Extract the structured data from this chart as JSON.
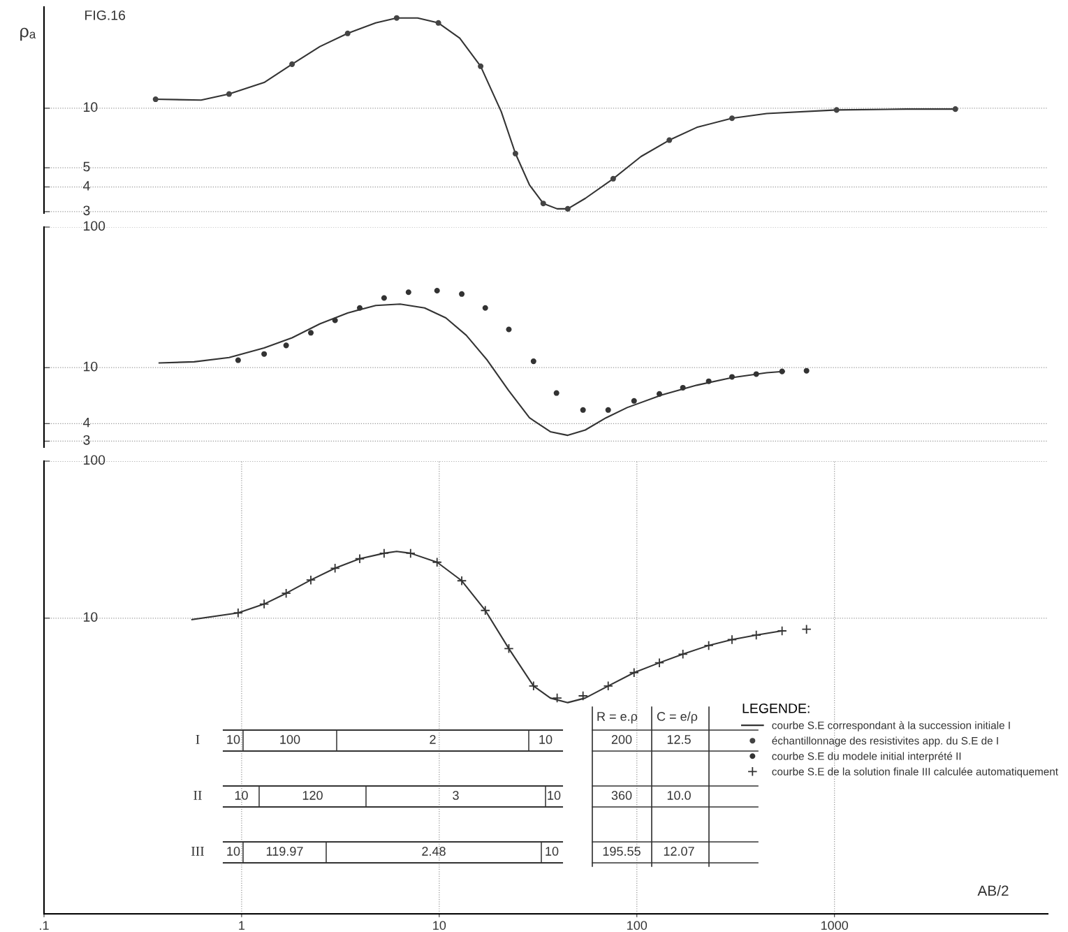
{
  "chart_data": [
    {
      "type": "line",
      "log": "xy",
      "title": "FIG.16",
      "ylabel": "ρₐ",
      "xlim": [
        0.1,
        12000
      ],
      "ylim": [
        2.95,
        32.5
      ],
      "yticks": [
        3,
        4,
        5,
        10
      ],
      "grid": true,
      "tick_labels": "y",
      "legend": "bottom right",
      "series": [
        {
          "name": "courbe S.E correspondant à la succession initiale I",
          "color": "#333333",
          "x": [
            0.367,
            0.624,
            0.864,
            1.3,
            1.8,
            2.49,
            3.44,
            4.77,
            6.09,
            7.77,
            9.9,
            12.7,
            16.2,
            20.6,
            24.3,
            28.6,
            33.6,
            39.5,
            44.7,
            54.8,
            75.9,
            105,
            146,
            201,
            303,
            454,
            1025,
            2310,
            4090
          ],
          "values": [
            11.1,
            11.0,
            11.8,
            13.5,
            16.7,
            20.5,
            23.9,
            27.0,
            28.6,
            28.6,
            27.0,
            22.6,
            16.3,
            9.6,
            5.9,
            4.1,
            3.3,
            3.1,
            3.1,
            3.5,
            4.4,
            5.7,
            6.9,
            8.0,
            8.9,
            9.4,
            9.8,
            9.9,
            9.9
          ]
        },
        {
          "name": "échantillonnage des resistivites app. du S.E de I",
          "type": "scatter",
          "marker": "circle",
          "color": "#444444",
          "x": [
            0.367,
            0.864,
            1.8,
            3.44,
            6.09,
            9.9,
            16.2,
            24.3,
            33.6,
            44.7,
            75.9,
            146,
            303,
            1025,
            4090
          ],
          "values": [
            11.1,
            11.8,
            16.7,
            23.9,
            28.6,
            27.0,
            16.3,
            5.9,
            3.3,
            3.1,
            4.4,
            6.9,
            8.9,
            9.8,
            9.9
          ]
        }
      ]
    },
    {
      "type": "line",
      "log": "xy",
      "xlim": [
        0.1,
        12000
      ],
      "ylim": [
        2.72,
        100
      ],
      "yticks": [
        3,
        4,
        10,
        100
      ],
      "grid": true,
      "tick_labels": "y",
      "legend": "bottom right",
      "series": [
        {
          "color": "#333333",
          "x": [
            0.383,
            0.575,
            0.864,
            1.3,
            1.8,
            2.49,
            3.44,
            4.77,
            6.34,
            8.43,
            10.8,
            13.7,
            17.5,
            22.4,
            28.6,
            36.5,
            44.7,
            54.8,
            69.9,
            89.3,
            134,
            201,
            303,
            454,
            557
          ],
          "values": [
            10.8,
            11.0,
            11.8,
            13.8,
            16.3,
            20.5,
            24.5,
            27.7,
            28.3,
            26.6,
            22.6,
            17.0,
            11.3,
            6.9,
            4.4,
            3.5,
            3.3,
            3.6,
            4.4,
            5.2,
            6.4,
            7.5,
            8.5,
            9.2,
            9.4
          ]
        },
        {
          "name": "courbe S.E du modele initial interprété II",
          "type": "scatter",
          "marker": "circle",
          "color": "#333333",
          "x": [
            0.96,
            1.3,
            1.68,
            2.24,
            2.97,
            3.96,
            5.26,
            6.99,
            9.75,
            13.0,
            17.1,
            22.5,
            30.0,
            39.2,
            53.4,
            71.6,
            96.8,
            130,
            171,
            231,
            303,
            402,
            543,
            722
          ],
          "values": [
            11.3,
            12.5,
            14.4,
            17.7,
            21.7,
            26.6,
            31.3,
            34.4,
            35.3,
            33.4,
            26.6,
            18.7,
            11.1,
            6.6,
            5.0,
            5.0,
            5.8,
            6.5,
            7.2,
            8.0,
            8.6,
            9.0,
            9.4,
            9.5
          ]
        }
      ]
    },
    {
      "type": "line",
      "log": "xy",
      "xlabel": "AB/2",
      "xlim": [
        0.1,
        12000
      ],
      "ylim": [
        0.131,
        100
      ],
      "xticks": [
        {
          "value": 0.1,
          "label": ".1"
        },
        1,
        10,
        100,
        1000
      ],
      "yticks": [
        10,
        100
      ],
      "grid": true,
      "legend": "bottom right",
      "legend_title": "LEGENDE:",
      "series": [
        {
          "color": "#333333",
          "x": [
            0.561,
            0.96,
            1.3,
            1.68,
            2.24,
            2.97,
            3.96,
            5.26,
            6.09,
            7.16,
            9.75,
            13.0,
            17.1,
            22.5,
            30.0,
            36.5,
            44.7,
            54.8,
            71.6,
            96.8,
            130,
            171,
            231,
            303,
            402,
            543
          ],
          "values": [
            9.8,
            10.8,
            12.3,
            14.4,
            17.5,
            20.8,
            23.9,
            25.9,
            26.6,
            25.9,
            22.7,
            17.3,
            11.2,
            6.4,
            3.7,
            3.1,
            2.9,
            3.1,
            3.7,
            4.5,
            5.2,
            5.9,
            6.7,
            7.3,
            7.8,
            8.3
          ]
        },
        {
          "name": "courbe S.E de la solution finale III calculée automatiquement",
          "type": "scatter",
          "marker": "cross",
          "color": "#333333",
          "x": [
            0.96,
            1.3,
            1.68,
            2.24,
            2.97,
            3.96,
            5.26,
            7.16,
            9.75,
            13.0,
            17.1,
            22.5,
            30.0,
            39.5,
            53.4,
            71.6,
            96.8,
            130,
            171,
            231,
            303,
            402,
            543,
            722
          ],
          "values": [
            10.8,
            12.3,
            14.4,
            17.5,
            20.8,
            23.9,
            25.9,
            25.9,
            22.7,
            17.3,
            11.2,
            6.4,
            3.7,
            3.1,
            3.2,
            3.7,
            4.5,
            5.2,
            5.9,
            6.7,
            7.3,
            7.8,
            8.3,
            8.5
          ]
        }
      ]
    },
    {
      "type": "other",
      "annotations": [
        "R = e.ρ",
        "C = e/ρ",
        "I",
        "10",
        "100",
        "2",
        "10",
        "200",
        "12.5",
        "II",
        "10",
        "120",
        "3",
        "10",
        "360",
        "10.0",
        "III",
        "10",
        "119.97",
        "2.48",
        "10",
        "195.55",
        "12.07"
      ]
    }
  ]
}
